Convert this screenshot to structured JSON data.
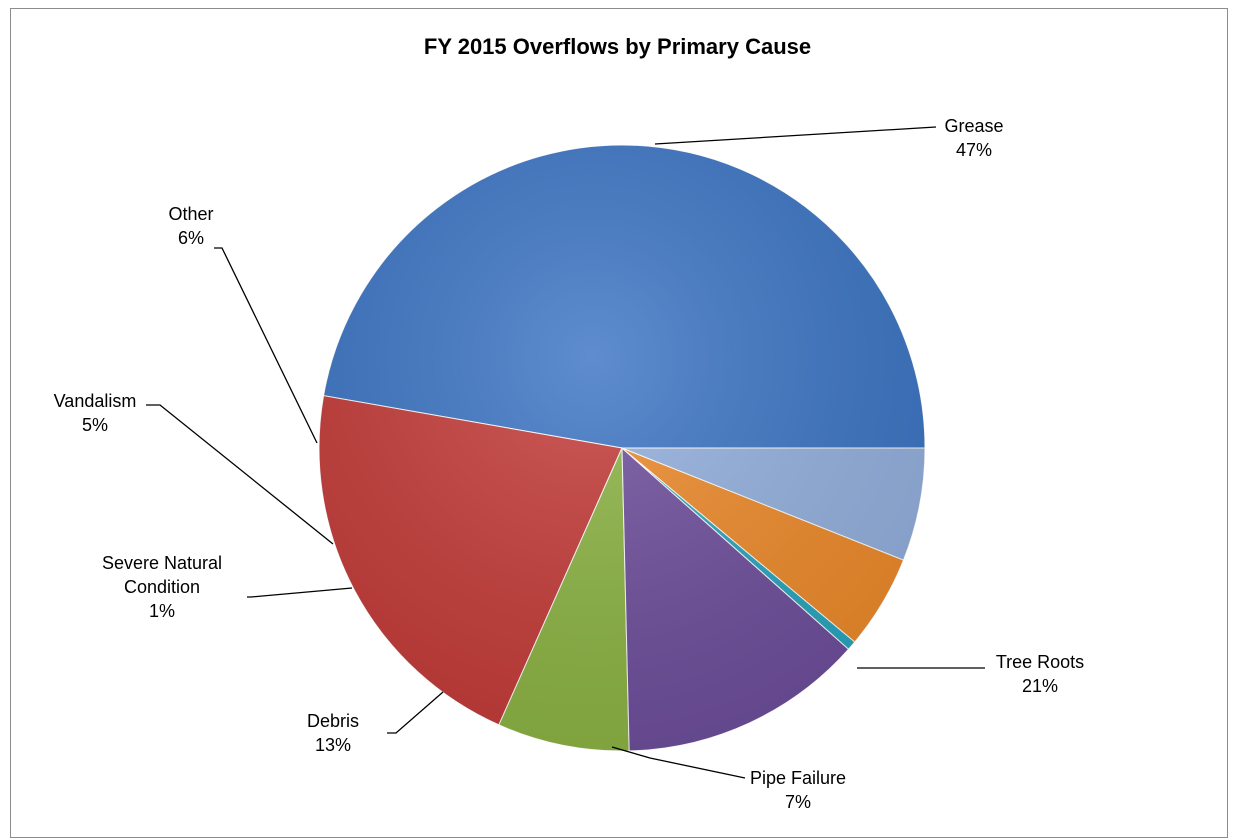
{
  "chart_data": {
    "type": "pie",
    "title": "FY 2015 Overflows by Primary Cause",
    "slices": [
      {
        "label": "Grease",
        "value": 47,
        "percent_label": "47%",
        "color": "#3b74c4"
      },
      {
        "label": "Tree Roots",
        "value": 21,
        "percent_label": "21%",
        "color": "#c43b38"
      },
      {
        "label": "Pipe Failure",
        "value": 7,
        "percent_label": "7%",
        "color": "#8cb443"
      },
      {
        "label": "Debris",
        "value": 13,
        "percent_label": "13%",
        "color": "#6e4e9c"
      },
      {
        "label": "Severe Natural Condition",
        "label_lines": [
          "Severe Natural",
          "Condition"
        ],
        "value": 0.5,
        "percent_label": "1%",
        "color": "#29a5be"
      },
      {
        "label": "Vandalism",
        "value": 5,
        "percent_label": "5%",
        "color": "#ee8a2a"
      },
      {
        "label": "Other",
        "value": 6,
        "percent_label": "6%",
        "color": "#93b0de"
      }
    ],
    "legend": "none"
  }
}
